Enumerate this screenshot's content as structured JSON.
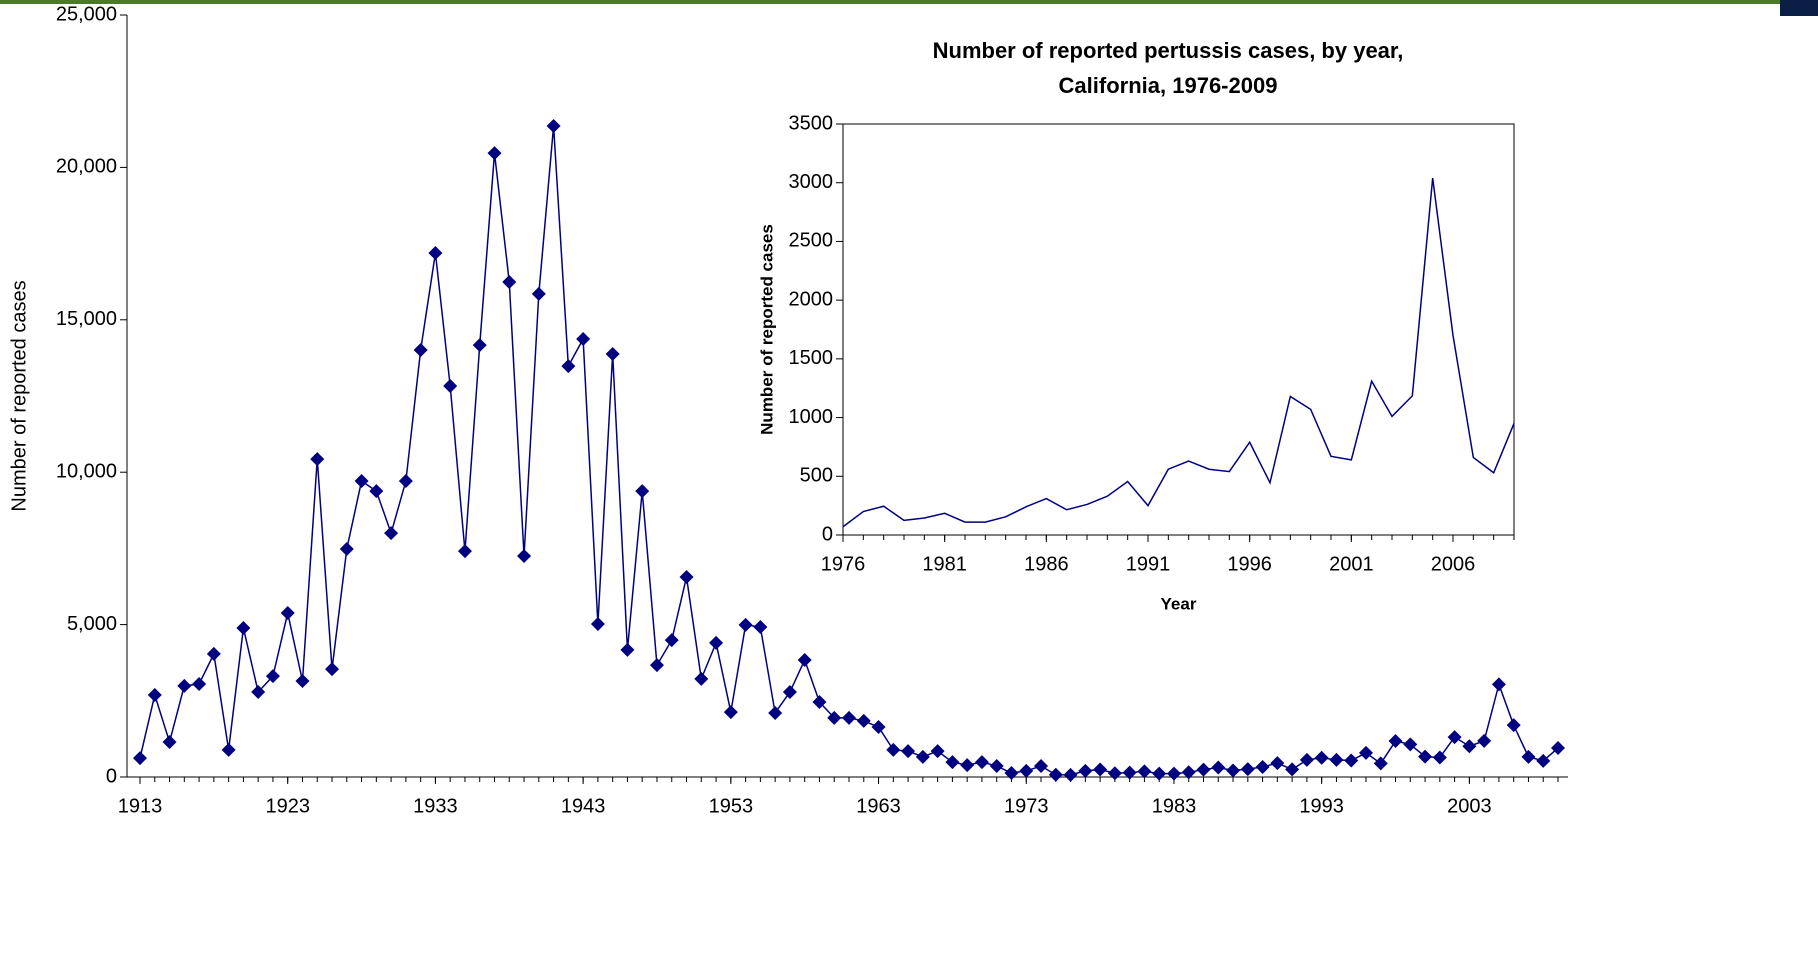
{
  "chart_data": [
    {
      "type": "line",
      "y_label": "Number of reported cases",
      "x": [
        1913,
        1914,
        1915,
        1916,
        1917,
        1918,
        1919,
        1920,
        1921,
        1922,
        1923,
        1924,
        1925,
        1926,
        1927,
        1928,
        1929,
        1930,
        1931,
        1932,
        1933,
        1934,
        1935,
        1936,
        1937,
        1938,
        1939,
        1940,
        1941,
        1942,
        1943,
        1944,
        1945,
        1946,
        1947,
        1948,
        1949,
        1950,
        1951,
        1952,
        1953,
        1954,
        1955,
        1956,
        1957,
        1958,
        1959,
        1960,
        1961,
        1962,
        1963,
        1964,
        1965,
        1966,
        1967,
        1968,
        1969,
        1970,
        1971,
        1972,
        1973,
        1974,
        1975,
        1976,
        1977,
        1978,
        1979,
        1980,
        1981,
        1982,
        1983,
        1984,
        1985,
        1986,
        1987,
        1988,
        1989,
        1990,
        1991,
        1992,
        1993,
        1994,
        1995,
        1996,
        1997,
        1998,
        1999,
        2000,
        2001,
        2002,
        2003,
        2004,
        2005,
        2006,
        2007,
        2008,
        2009
      ],
      "series": [
        {
          "name": "Reported cases",
          "color": "#000080",
          "marker": "diamond",
          "values": [
            620,
            2690,
            1150,
            2990,
            3050,
            4040,
            890,
            4890,
            2790,
            3310,
            5380,
            3150,
            10430,
            3540,
            7480,
            9710,
            9380,
            8000,
            9710,
            14010,
            17190,
            12830,
            7410,
            14170,
            20470,
            16240,
            7250,
            15850,
            21360,
            13480,
            14370,
            5020,
            13880,
            4170,
            9380,
            3670,
            4490,
            6560,
            3220,
            4400,
            2130,
            4990,
            4920,
            2100,
            2790,
            3840,
            2460,
            1940,
            1940,
            1840,
            1640,
            890,
            850,
            660,
            850,
            490,
            390,
            490,
            360,
            130,
            200,
            360,
            75,
            70,
            200,
            245,
            125,
            145,
            185,
            110,
            110,
            155,
            240,
            310,
            215,
            260,
            330,
            455,
            250,
            560,
            630,
            560,
            540,
            790,
            445,
            1180,
            1070,
            670,
            640,
            1310,
            1010,
            1185,
            3040,
            1700,
            660,
            530,
            950
          ]
        }
      ],
      "xlim": [
        1913,
        2009
      ],
      "xticks": [
        1913,
        1923,
        1933,
        1943,
        1953,
        1963,
        1973,
        1983,
        1993,
        2003
      ],
      "ylim": [
        0,
        25000
      ],
      "yticks": [
        0,
        {
          "value": 5000,
          "label": "5,000"
        },
        {
          "value": 10000,
          "label": "10,000"
        },
        {
          "value": 15000,
          "label": "15,000"
        },
        {
          "value": 20000,
          "label": "20,000"
        },
        {
          "value": 25000,
          "label": "25,000"
        }
      ]
    },
    {
      "type": "line",
      "title": [
        "Number of reported pertussis cases, by year,",
        "California, 1976-2009"
      ],
      "x_label": "Year",
      "y_label": "Number of reported cases",
      "x": [
        1976,
        1977,
        1978,
        1979,
        1980,
        1981,
        1982,
        1983,
        1984,
        1985,
        1986,
        1987,
        1988,
        1989,
        1990,
        1991,
        1992,
        1993,
        1994,
        1995,
        1996,
        1997,
        1998,
        1999,
        2000,
        2001,
        2002,
        2003,
        2004,
        2005,
        2006,
        2007,
        2008,
        2009
      ],
      "series": [
        {
          "name": "Reported cases",
          "color": "#000080",
          "values": [
            70,
            200,
            245,
            125,
            145,
            185,
            110,
            110,
            155,
            240,
            310,
            215,
            260,
            330,
            455,
            250,
            560,
            630,
            560,
            540,
            790,
            445,
            1180,
            1070,
            670,
            640,
            1310,
            1010,
            1185,
            3040,
            1700,
            660,
            530,
            950
          ]
        }
      ],
      "xlim": [
        1976,
        2009
      ],
      "xticks": [
        1976,
        1981,
        1986,
        1991,
        1996,
        2001,
        2006
      ],
      "ylim": [
        0,
        3500
      ],
      "yticks": [
        0,
        500,
        1000,
        1500,
        2000,
        2500,
        3000,
        3500
      ]
    }
  ]
}
